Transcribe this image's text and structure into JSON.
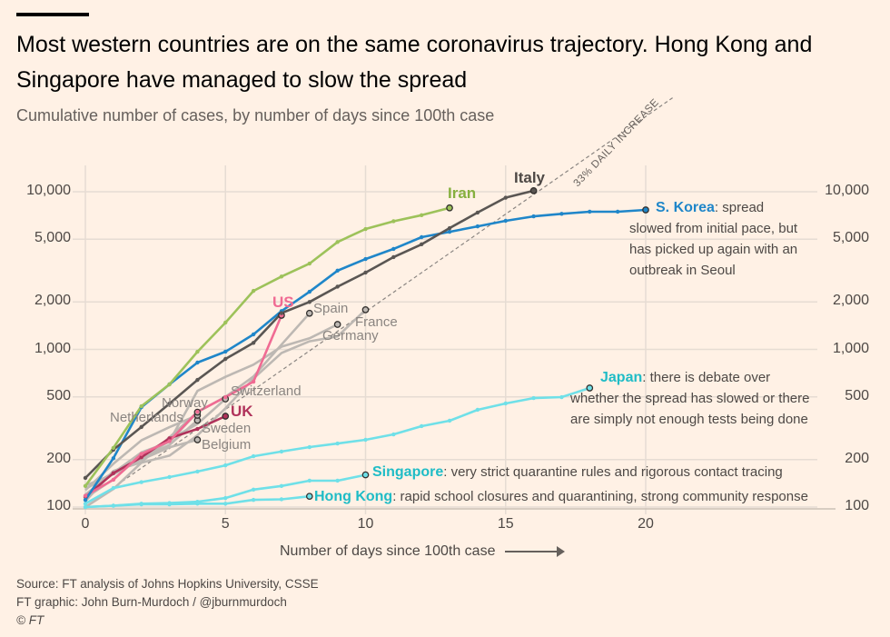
{
  "title": "Most western countries are on the same coronavirus trajectory. Hong Kong and Singapore have managed to slow the spread",
  "subtitle": "Cumulative number of cases, by number of days since 100th case",
  "footer": {
    "source": "Source: FT analysis of Johns Hopkins University, CSSE",
    "credit": "FT graphic: John Burn-Murdoch / @jburnmurdoch",
    "copyright": "© FT"
  },
  "chart_data": {
    "type": "line",
    "title": "Most western countries are on the same coronavirus trajectory. Hong Kong and Singapore have managed to slow the spread",
    "subtitle": "Cumulative number of cases, by number of days since 100th case",
    "xlabel": "Number of days since 100th case",
    "ylabel": "",
    "yscale": "log",
    "xlim": [
      0,
      27
    ],
    "ylim": [
      100,
      12000
    ],
    "xticks": [
      "0",
      "5",
      "10",
      "15",
      "20"
    ],
    "yticks": [
      "100",
      "200",
      "500",
      "1,000",
      "2,000",
      "5,000",
      "10,000"
    ],
    "ytick_values": [
      100,
      200,
      500,
      1000,
      2000,
      5000,
      10000
    ],
    "grid": true,
    "reference_line": {
      "label": "33% DAILY INCREASE",
      "growth_rate": 0.33,
      "start": 100
    },
    "series": [
      {
        "name": "Belgium",
        "color": "#bdb8b3",
        "values": [
          109,
          169,
          200,
          239,
          267
        ]
      },
      {
        "name": "Sweden",
        "color": "#bdb8b3",
        "values": [
          137,
          161,
          203,
          248,
          355
        ]
      },
      {
        "name": "Netherlands",
        "color": "#bdb8b3",
        "values": [
          128,
          188,
          265,
          321,
          382
        ]
      },
      {
        "name": "Norway",
        "color": "#bdb8b3",
        "values": [
          113,
          169,
          192,
          277,
          400
        ]
      },
      {
        "name": "Switzerland",
        "color": "#bdb8b3",
        "values": [
          114,
          150,
          214,
          268,
          337,
          485
        ]
      },
      {
        "name": "Germany",
        "color": "#bdb8b3",
        "values": [
          130,
          165,
          203,
          262,
          545,
          670,
          800,
          1040,
          1176,
          1440
        ]
      },
      {
        "name": "France",
        "color": "#bdb8b3",
        "values": [
          100,
          130,
          191,
          212,
          285,
          423,
          653,
          949,
          1126,
          1209,
          1784
        ]
      },
      {
        "name": "Spain",
        "color": "#bdb8b3",
        "values": [
          120,
          165,
          222,
          259,
          400,
          500,
          673,
          1073,
          1695
        ]
      },
      {
        "name": "Hong Kong",
        "color": "#6fe0e8",
        "values": [
          100,
          102,
          104,
          104,
          105,
          105,
          111,
          112,
          117
        ]
      },
      {
        "name": "Singapore",
        "color": "#6fe0e8",
        "values": [
          100,
          102,
          105,
          106,
          108,
          114,
          129,
          136,
          147,
          147,
          160
        ]
      },
      {
        "name": "Japan",
        "color": "#6fe0e8",
        "values": [
          105,
          132,
          144,
          155,
          168,
          184,
          210,
          225,
          240,
          253,
          267,
          289,
          326,
          353,
          414,
          454,
          491,
          498,
          569
        ]
      },
      {
        "name": "UK",
        "color": "#b0325a",
        "values": [
          116,
          164,
          207,
          273,
          313,
          377
        ]
      },
      {
        "name": "US",
        "color": "#f06b93",
        "values": [
          118,
          149,
          217,
          262,
          402,
          498,
          624,
          1645
        ]
      },
      {
        "name": "S. Korea",
        "color": "#1f86c9",
        "values": [
          111,
          204,
          430,
          600,
          825,
          968,
          1245,
          1750,
          2320,
          3160,
          3740,
          4340,
          5150,
          5570,
          6030,
          6540,
          6980,
          7240,
          7470,
          7470,
          7670
        ]
      },
      {
        "name": "Italy",
        "color": "#5a5653",
        "values": [
          153,
          231,
          322,
          453,
          640,
          870,
          1100,
          1700,
          2000,
          2500,
          3070,
          3850,
          4640,
          5880,
          7380,
          9170,
          10150
        ]
      },
      {
        "name": "Iran",
        "color": "#9dc25a",
        "values": [
          136,
          237,
          436,
          600,
          966,
          1480,
          2350,
          2900,
          3500,
          4800,
          5800,
          6500,
          7100,
          7900
        ]
      }
    ],
    "annotations": {
      "skorea": "spread slowed from initial pace, but has picked up again with an outbreak in Seoul",
      "japan": "there is debate over whether the spread has slowed or there are simply not enough tests being done",
      "singapore": "very strict quarantine rules and rigorous contact tracing",
      "hongkong": "rapid school closures and quarantining, strong community response"
    }
  }
}
